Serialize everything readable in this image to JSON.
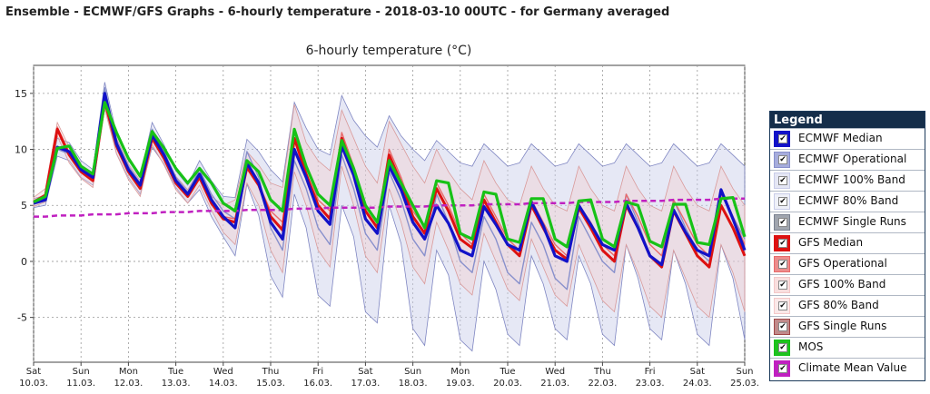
{
  "page": {
    "heading": "Ensemble - ECMWF/GFS Graphs - 6-hourly temperature - 2018-03-10 00UTC - for Germany averaged"
  },
  "legend": {
    "title": "Legend",
    "items": [
      {
        "label": "ECMWF Median",
        "color": "#1212c8",
        "fill": "#1212c8"
      },
      {
        "label": "ECMWF Operational",
        "color": "#8890cc",
        "fill": "#a6acdc"
      },
      {
        "label": "ECMWF 100% Band",
        "color": "#c8cce8",
        "fill": "#e4e6f4"
      },
      {
        "label": "ECMWF 80% Band",
        "color": "#c8cce8",
        "fill": "#eef0f8"
      },
      {
        "label": "ECMWF Single Runs",
        "color": "#7a8190",
        "fill": "#a0a5ae"
      },
      {
        "label": "GFS Median",
        "color": "#dd1111",
        "fill": "#dd1111"
      },
      {
        "label": "GFS Operational",
        "color": "#e86a6a",
        "fill": "#ec8c8c"
      },
      {
        "label": "GFS 100% Band",
        "color": "#f4c8c8",
        "fill": "#f8dede"
      },
      {
        "label": "GFS 80% Band",
        "color": "#f4c8c8",
        "fill": "#fae8e8"
      },
      {
        "label": "GFS Single Runs",
        "color": "#a04848",
        "fill": "#c08a8a"
      },
      {
        "label": "MOS",
        "color": "#17c217",
        "fill": "#1fc21f"
      },
      {
        "label": "Climate Mean Value",
        "color": "#c020c0",
        "fill": "#c020c0"
      }
    ]
  },
  "chart_data": {
    "type": "line",
    "title": "6-hourly temperature (°C)",
    "xlabel": "",
    "ylabel": "",
    "ylim": [
      -9,
      17.5
    ],
    "grid": true,
    "legend_placement": "right",
    "yticks": [
      15,
      10,
      5,
      0,
      -5
    ],
    "x_unit": "6-hourly steps from Sat 10.03. 00UTC (4 per day)",
    "xticks": [
      {
        "day": "Sat",
        "date": "10.03."
      },
      {
        "day": "Sun",
        "date": "11.03."
      },
      {
        "day": "Mon",
        "date": "12.03."
      },
      {
        "day": "Tue",
        "date": "13.03."
      },
      {
        "day": "Wed",
        "date": "14.03."
      },
      {
        "day": "Thu",
        "date": "15.03."
      },
      {
        "day": "Fri",
        "date": "16.03."
      },
      {
        "day": "Sat",
        "date": "17.03."
      },
      {
        "day": "Sun",
        "date": "18.03."
      },
      {
        "day": "Mon",
        "date": "19.03."
      },
      {
        "day": "Tue",
        "date": "20.03."
      },
      {
        "day": "Wed",
        "date": "21.03."
      },
      {
        "day": "Thu",
        "date": "22.03."
      },
      {
        "day": "Fri",
        "date": "23.03."
      },
      {
        "day": "Sat",
        "date": "24.03."
      },
      {
        "day": "Sun",
        "date": "25.03."
      }
    ],
    "series": [
      {
        "name": "ECMWF Median",
        "color": "#1212c8",
        "values": [
          5.2,
          5.5,
          10.2,
          9.8,
          8.2,
          7.5,
          15.0,
          10.5,
          8.2,
          6.8,
          11.3,
          9.5,
          7.2,
          6.0,
          7.8,
          5.5,
          4.0,
          3.0,
          8.8,
          7.0,
          3.5,
          2.0,
          10.0,
          7.5,
          4.5,
          3.3,
          10.3,
          7.7,
          3.8,
          2.5,
          8.5,
          6.4,
          3.5,
          2.0,
          5.0,
          3.4,
          1.0,
          0.5,
          4.9,
          3.3,
          1.5,
          1.0,
          5.3,
          3.2,
          0.5,
          0.0,
          5.0,
          3.3,
          1.5,
          1.0,
          5.2,
          3.0,
          0.5,
          -0.3,
          4.6,
          2.6,
          1.0,
          0.5,
          6.4,
          3.8,
          1.0
        ]
      },
      {
        "name": "GFS Median",
        "color": "#dd1111",
        "values": [
          5.3,
          5.9,
          11.8,
          9.5,
          8.0,
          7.2,
          14.3,
          10.3,
          8.0,
          6.5,
          11.0,
          9.2,
          7.0,
          5.8,
          7.5,
          5.2,
          3.8,
          3.5,
          8.4,
          6.8,
          4.0,
          2.8,
          11.0,
          7.8,
          5.0,
          3.8,
          11.0,
          8.0,
          4.5,
          3.0,
          9.5,
          7.0,
          4.0,
          2.5,
          6.5,
          4.5,
          2.0,
          1.2,
          5.5,
          3.5,
          1.5,
          0.5,
          5.0,
          3.0,
          1.0,
          0.2,
          4.8,
          3.0,
          1.0,
          0.0,
          5.0,
          3.0,
          0.5,
          -0.5,
          4.5,
          2.5,
          0.5,
          -0.5,
          5.0,
          3.0,
          0.5
        ]
      },
      {
        "name": "ECMWF Operational",
        "color": "#8890cc",
        "values": [
          5.1,
          5.4,
          10.0,
          9.6,
          8.0,
          7.3,
          15.5,
          10.8,
          8.5,
          7.0,
          11.8,
          9.8,
          7.5,
          6.2,
          8.2,
          6.0,
          4.5,
          3.8,
          9.8,
          7.5,
          3.0,
          1.0,
          9.0,
          6.5,
          3.0,
          1.5,
          9.5,
          6.5,
          2.5,
          1.0,
          8.0,
          5.5,
          2.0,
          0.5,
          6.0,
          3.5,
          0.0,
          -1.0,
          4.0,
          2.0,
          -1.0,
          -2.0,
          3.5,
          1.5,
          -1.5,
          -2.5,
          4.0,
          2.0,
          0.0,
          -1.0,
          6.0,
          3.5,
          0.5,
          -0.5,
          5.5,
          3.0,
          1.0,
          0.0,
          6.5,
          4.0,
          2.0
        ]
      },
      {
        "name": "GFS Operational",
        "color": "#e86a6a",
        "values": [
          5.4,
          6.0,
          12.0,
          9.7,
          8.1,
          7.4,
          14.6,
          10.4,
          8.1,
          6.6,
          11.2,
          9.3,
          7.1,
          5.9,
          7.7,
          5.4,
          4.0,
          3.8,
          8.6,
          6.9,
          4.5,
          3.5,
          11.8,
          8.5,
          5.5,
          4.5,
          11.5,
          8.5,
          5.0,
          3.5,
          10.0,
          7.5,
          4.5,
          3.0,
          7.0,
          5.0,
          2.5,
          1.5,
          6.0,
          4.0,
          2.0,
          1.0,
          5.5,
          3.5,
          1.5,
          0.5,
          5.0,
          3.5,
          1.5,
          0.5,
          6.0,
          4.0,
          1.5,
          0.5,
          5.5,
          3.5,
          1.5,
          0.5,
          6.0,
          4.0,
          1.5
        ]
      },
      {
        "name": "MOS",
        "color": "#17c217",
        "values": [
          5.3,
          5.8,
          10.1,
          10.3,
          8.5,
          7.8,
          14.2,
          11.5,
          9.2,
          7.6,
          11.6,
          10.1,
          8.3,
          7.0,
          8.3,
          7.0,
          5.2,
          4.5,
          9.0,
          8.0,
          5.5,
          4.5,
          11.8,
          8.5,
          6.0,
          5.0,
          10.8,
          8.3,
          5.0,
          3.5,
          9.0,
          7.0,
          5.0,
          3.0,
          7.2,
          7.0,
          2.5,
          2.0,
          6.2,
          6.0,
          2.0,
          1.7,
          5.6,
          5.6,
          2.0,
          1.3,
          5.4,
          5.5,
          2.0,
          1.3,
          5.3,
          5.0,
          1.8,
          1.3,
          5.1,
          5.1,
          1.7,
          1.5,
          5.6,
          5.7,
          2.2
        ]
      },
      {
        "name": "Climate Mean Value",
        "color": "#c020c0",
        "values": [
          4.0,
          4.0,
          4.1,
          4.1,
          4.1,
          4.2,
          4.2,
          4.2,
          4.3,
          4.3,
          4.3,
          4.4,
          4.4,
          4.4,
          4.5,
          4.5,
          4.5,
          4.5,
          4.6,
          4.6,
          4.6,
          4.6,
          4.7,
          4.7,
          4.7,
          4.8,
          4.8,
          4.8,
          4.8,
          4.8,
          4.9,
          4.9,
          4.9,
          4.9,
          5.0,
          5.0,
          5.0,
          5.0,
          5.1,
          5.1,
          5.1,
          5.1,
          5.2,
          5.2,
          5.2,
          5.2,
          5.3,
          5.3,
          5.3,
          5.3,
          5.4,
          5.4,
          5.4,
          5.4,
          5.5,
          5.5,
          5.5,
          5.5,
          5.6,
          5.6,
          5.6
        ]
      }
    ],
    "bands": [
      {
        "name": "ECMWF 100% Band",
        "color": "#c8cce8",
        "lower": [
          4.8,
          5.0,
          9.4,
          9.0,
          7.5,
          6.8,
          14.0,
          9.6,
          7.5,
          6.0,
          10.2,
          8.7,
          6.6,
          5.2,
          6.4,
          4.0,
          2.2,
          0.5,
          6.9,
          4.1,
          -1.3,
          -3.2,
          6.0,
          3.0,
          -3.0,
          -4.0,
          5.0,
          2.2,
          -4.5,
          -5.5,
          5.0,
          1.6,
          -6.0,
          -7.5,
          1.0,
          -1.2,
          -7.0,
          -8.0,
          0.0,
          -2.5,
          -6.5,
          -7.5,
          0.5,
          -2.0,
          -6.0,
          -7.0,
          0.5,
          -2.0,
          -6.5,
          -7.5,
          1.5,
          -1.5,
          -6.0,
          -7.0,
          1.0,
          -2.0,
          -6.5,
          -7.5,
          1.5,
          -1.5,
          -7.0
        ],
        "upper": [
          5.6,
          5.9,
          11.0,
          10.6,
          9.0,
          8.2,
          16.0,
          11.4,
          9.0,
          7.6,
          12.4,
          10.4,
          8.1,
          6.8,
          9.0,
          7.2,
          5.8,
          5.7,
          10.9,
          9.8,
          8.2,
          7.1,
          14.2,
          11.9,
          10.0,
          9.5,
          14.8,
          12.6,
          11.2,
          10.2,
          13.0,
          11.2,
          10.0,
          9.0,
          10.8,
          9.8,
          8.8,
          8.5,
          10.5,
          9.5,
          8.5,
          8.8,
          10.5,
          9.5,
          8.5,
          8.8,
          10.5,
          9.5,
          8.5,
          8.8,
          10.5,
          9.5,
          8.5,
          8.8,
          10.5,
          9.5,
          8.5,
          8.8,
          10.5,
          9.5,
          8.5
        ]
      },
      {
        "name": "GFS 100% Band",
        "color": "#f4c8c8",
        "lower": [
          4.9,
          5.3,
          11.2,
          8.8,
          7.4,
          6.6,
          13.6,
          9.6,
          7.3,
          5.8,
          10.4,
          8.6,
          6.4,
          5.2,
          6.8,
          4.6,
          2.6,
          1.5,
          7.0,
          5.0,
          1.0,
          -1.0,
          8.0,
          5.0,
          1.0,
          -0.5,
          8.5,
          5.0,
          0.5,
          -1.0,
          6.5,
          3.5,
          -0.5,
          -2.0,
          3.5,
          1.0,
          -2.0,
          -3.0,
          2.5,
          0.0,
          -2.5,
          -3.5,
          2.0,
          -0.5,
          -3.0,
          -4.0,
          1.5,
          -1.0,
          -3.5,
          -4.5,
          1.5,
          -1.0,
          -4.0,
          -5.0,
          1.0,
          -1.5,
          -4.0,
          -5.0,
          1.5,
          -1.0,
          -4.5
        ],
        "upper": [
          5.7,
          6.5,
          12.4,
          10.2,
          8.6,
          7.8,
          15.0,
          11.0,
          8.7,
          7.2,
          11.6,
          9.8,
          7.6,
          6.4,
          8.2,
          5.8,
          5.0,
          5.5,
          9.8,
          8.6,
          7.0,
          6.6,
          14.0,
          10.6,
          9.0,
          8.1,
          13.5,
          11.0,
          8.5,
          7.0,
          12.5,
          10.5,
          8.5,
          7.0,
          10.0,
          8.0,
          6.5,
          5.5,
          9.0,
          7.0,
          5.5,
          5.0,
          8.5,
          6.5,
          5.0,
          4.5,
          8.5,
          6.5,
          5.0,
          4.5,
          8.5,
          6.5,
          5.0,
          4.5,
          8.5,
          6.5,
          5.0,
          4.5,
          8.5,
          6.5,
          5.0
        ]
      }
    ]
  }
}
